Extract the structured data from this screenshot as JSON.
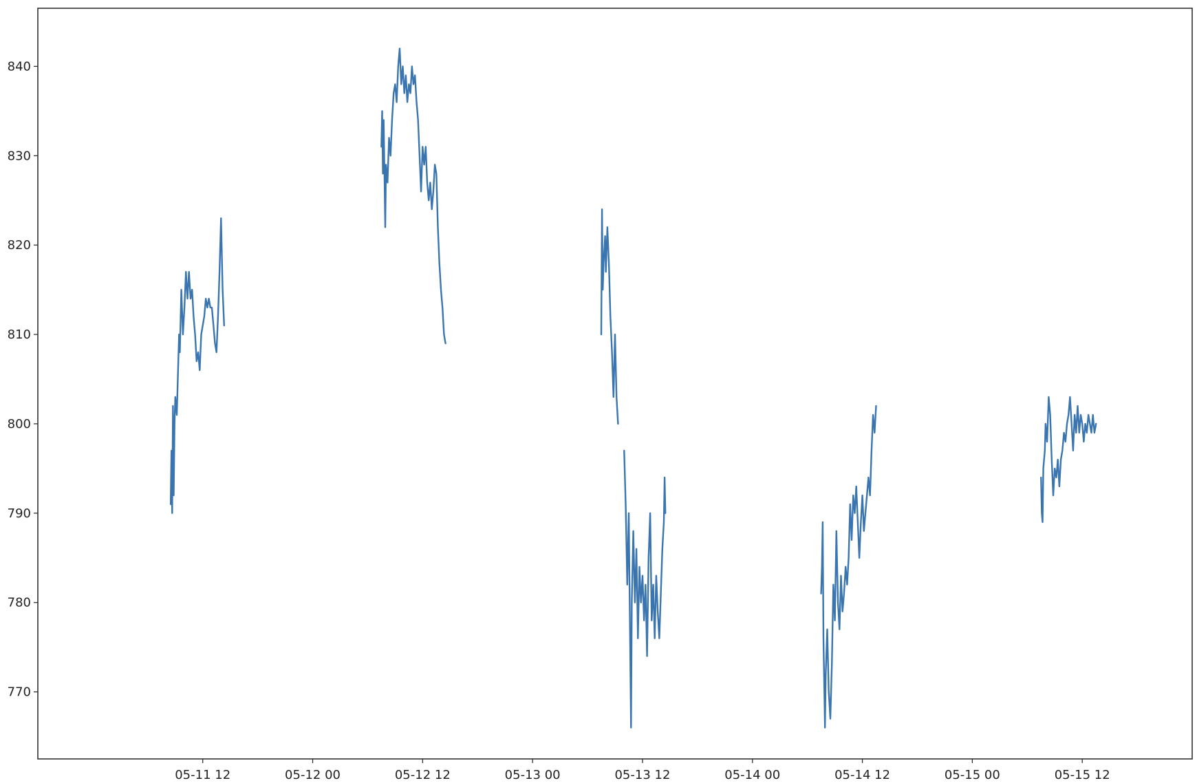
{
  "chart_data": {
    "type": "line",
    "title": "",
    "xlabel": "",
    "ylabel": "",
    "xlim": [
      "2022-05-10 18:00",
      "2022-05-16 00:00"
    ],
    "ylim": [
      762.5,
      846.5
    ],
    "grid": false,
    "legend": null,
    "xticks": [
      {
        "value": "2022-05-11 12:00",
        "label": "05-11 12"
      },
      {
        "value": "2022-05-12 00:00",
        "label": "05-12 00"
      },
      {
        "value": "2022-05-12 12:00",
        "label": "05-12 12"
      },
      {
        "value": "2022-05-13 00:00",
        "label": "05-13 00"
      },
      {
        "value": "2022-05-13 12:00",
        "label": "05-13 12"
      },
      {
        "value": "2022-05-14 00:00",
        "label": "05-14 00"
      },
      {
        "value": "2022-05-14 12:00",
        "label": "05-14 12"
      },
      {
        "value": "2022-05-15 00:00",
        "label": "05-15 00"
      },
      {
        "value": "2022-05-15 12:00",
        "label": "05-15 12"
      }
    ],
    "yticks": [
      {
        "value": 770,
        "label": "770"
      },
      {
        "value": 780,
        "label": "780"
      },
      {
        "value": 790,
        "label": "790"
      },
      {
        "value": 800,
        "label": "800"
      },
      {
        "value": 810,
        "label": "810"
      },
      {
        "value": 820,
        "label": "820"
      },
      {
        "value": 830,
        "label": "830"
      },
      {
        "value": 840,
        "label": "840"
      }
    ],
    "series": [
      {
        "color": "#3a75b0",
        "segments": [
          [
            [
              "2022-05-11 08:30",
              791
            ],
            [
              "2022-05-11 08:35",
              797
            ],
            [
              "2022-05-11 08:40",
              790
            ],
            [
              "2022-05-11 08:45",
              802
            ],
            [
              "2022-05-11 08:50",
              792
            ],
            [
              "2022-05-11 08:55",
              800
            ],
            [
              "2022-05-11 09:00",
              803
            ],
            [
              "2022-05-11 09:10",
              801
            ],
            [
              "2022-05-11 09:15",
              804
            ],
            [
              "2022-05-11 09:25",
              810
            ],
            [
              "2022-05-11 09:30",
              808
            ],
            [
              "2022-05-11 09:40",
              815
            ],
            [
              "2022-05-11 09:50",
              810
            ],
            [
              "2022-05-11 10:00",
              813
            ],
            [
              "2022-05-11 10:10",
              817
            ],
            [
              "2022-05-11 10:20",
              814
            ],
            [
              "2022-05-11 10:30",
              817
            ],
            [
              "2022-05-11 10:40",
              814
            ],
            [
              "2022-05-11 10:50",
              815
            ],
            [
              "2022-05-11 11:00",
              812
            ],
            [
              "2022-05-11 11:10",
              810
            ],
            [
              "2022-05-11 11:20",
              807
            ],
            [
              "2022-05-11 11:30",
              808
            ],
            [
              "2022-05-11 11:40",
              806
            ],
            [
              "2022-05-11 11:50",
              810
            ],
            [
              "2022-05-11 12:00",
              811
            ],
            [
              "2022-05-11 12:10",
              812
            ],
            [
              "2022-05-11 12:20",
              814
            ],
            [
              "2022-05-11 12:30",
              813
            ],
            [
              "2022-05-11 12:40",
              814
            ],
            [
              "2022-05-11 12:50",
              813
            ],
            [
              "2022-05-11 13:00",
              813
            ],
            [
              "2022-05-11 13:10",
              811
            ],
            [
              "2022-05-11 13:20",
              809
            ],
            [
              "2022-05-11 13:30",
              808
            ],
            [
              "2022-05-11 13:40",
              812
            ],
            [
              "2022-05-11 13:50",
              817
            ],
            [
              "2022-05-11 14:00",
              823
            ],
            [
              "2022-05-11 14:10",
              815
            ],
            [
              "2022-05-11 14:20",
              811
            ]
          ],
          [
            [
              "2022-05-12 07:30",
              831
            ],
            [
              "2022-05-12 07:35",
              835
            ],
            [
              "2022-05-12 07:40",
              828
            ],
            [
              "2022-05-12 07:45",
              834
            ],
            [
              "2022-05-12 07:55",
              822
            ],
            [
              "2022-05-12 08:00",
              829
            ],
            [
              "2022-05-12 08:10",
              827
            ],
            [
              "2022-05-12 08:20",
              832
            ],
            [
              "2022-05-12 08:30",
              830
            ],
            [
              "2022-05-12 08:40",
              834
            ],
            [
              "2022-05-12 08:50",
              837
            ],
            [
              "2022-05-12 09:00",
              838
            ],
            [
              "2022-05-12 09:10",
              836
            ],
            [
              "2022-05-12 09:20",
              840
            ],
            [
              "2022-05-12 09:30",
              842
            ],
            [
              "2022-05-12 09:40",
              838
            ],
            [
              "2022-05-12 09:50",
              840
            ],
            [
              "2022-05-12 10:00",
              837
            ],
            [
              "2022-05-12 10:10",
              839
            ],
            [
              "2022-05-12 10:20",
              836
            ],
            [
              "2022-05-12 10:30",
              838
            ],
            [
              "2022-05-12 10:40",
              837
            ],
            [
              "2022-05-12 10:50",
              840
            ],
            [
              "2022-05-12 11:00",
              838
            ],
            [
              "2022-05-12 11:10",
              839
            ],
            [
              "2022-05-12 11:20",
              836
            ],
            [
              "2022-05-12 11:30",
              834
            ],
            [
              "2022-05-12 11:40",
              830
            ],
            [
              "2022-05-12 11:50",
              826
            ],
            [
              "2022-05-12 12:00",
              831
            ],
            [
              "2022-05-12 12:10",
              829
            ],
            [
              "2022-05-12 12:20",
              831
            ],
            [
              "2022-05-12 12:30",
              827
            ],
            [
              "2022-05-12 12:40",
              825
            ],
            [
              "2022-05-12 12:50",
              827
            ],
            [
              "2022-05-12 13:00",
              824
            ],
            [
              "2022-05-12 13:10",
              826
            ],
            [
              "2022-05-12 13:20",
              829
            ],
            [
              "2022-05-12 13:30",
              828
            ],
            [
              "2022-05-12 13:40",
              822
            ],
            [
              "2022-05-12 13:50",
              818
            ],
            [
              "2022-05-12 14:00",
              815
            ],
            [
              "2022-05-12 14:10",
              813
            ],
            [
              "2022-05-12 14:20",
              810
            ],
            [
              "2022-05-12 14:30",
              809
            ]
          ],
          [
            [
              "2022-05-13 07:30",
              810
            ],
            [
              "2022-05-13 07:35",
              824
            ],
            [
              "2022-05-13 07:40",
              815
            ],
            [
              "2022-05-13 07:45",
              818
            ],
            [
              "2022-05-13 07:55",
              821
            ],
            [
              "2022-05-13 08:00",
              817
            ],
            [
              "2022-05-13 08:10",
              822
            ],
            [
              "2022-05-13 08:20",
              818
            ],
            [
              "2022-05-13 08:30",
              812
            ],
            [
              "2022-05-13 08:40",
              808
            ],
            [
              "2022-05-13 08:50",
              803
            ],
            [
              "2022-05-13 09:00",
              810
            ],
            [
              "2022-05-13 09:10",
              803
            ],
            [
              "2022-05-13 09:20",
              800
            ]
          ],
          [
            [
              "2022-05-13 10:00",
              797
            ],
            [
              "2022-05-13 10:10",
              791
            ],
            [
              "2022-05-13 10:20",
              782
            ],
            [
              "2022-05-13 10:30",
              790
            ],
            [
              "2022-05-13 10:40",
              774
            ],
            [
              "2022-05-13 10:45",
              766
            ],
            [
              "2022-05-13 10:50",
              780
            ],
            [
              "2022-05-13 11:00",
              788
            ],
            [
              "2022-05-13 11:10",
              780
            ],
            [
              "2022-05-13 11:20",
              786
            ],
            [
              "2022-05-13 11:30",
              776
            ],
            [
              "2022-05-13 11:40",
              784
            ],
            [
              "2022-05-13 11:50",
              780
            ],
            [
              "2022-05-13 12:00",
              783
            ],
            [
              "2022-05-13 12:10",
              778
            ],
            [
              "2022-05-13 12:20",
              782
            ],
            [
              "2022-05-13 12:30",
              774
            ],
            [
              "2022-05-13 12:40",
              785
            ],
            [
              "2022-05-13 12:50",
              790
            ],
            [
              "2022-05-13 13:00",
              778
            ],
            [
              "2022-05-13 13:10",
              782
            ],
            [
              "2022-05-13 13:20",
              776
            ],
            [
              "2022-05-13 13:30",
              783
            ],
            [
              "2022-05-13 13:40",
              779
            ],
            [
              "2022-05-13 13:50",
              776
            ],
            [
              "2022-05-13 14:00",
              781
            ],
            [
              "2022-05-13 14:10",
              786
            ],
            [
              "2022-05-13 14:20",
              789
            ],
            [
              "2022-05-13 14:25",
              794
            ],
            [
              "2022-05-13 14:30",
              790
            ]
          ],
          [
            [
              "2022-05-14 07:30",
              781
            ],
            [
              "2022-05-14 07:35",
              784
            ],
            [
              "2022-05-14 07:40",
              789
            ],
            [
              "2022-05-14 07:45",
              776
            ],
            [
              "2022-05-14 07:55",
              766
            ],
            [
              "2022-05-14 08:00",
              772
            ],
            [
              "2022-05-14 08:10",
              777
            ],
            [
              "2022-05-14 08:20",
              770
            ],
            [
              "2022-05-14 08:30",
              767
            ],
            [
              "2022-05-14 08:40",
              773
            ],
            [
              "2022-05-14 08:50",
              782
            ],
            [
              "2022-05-14 09:00",
              778
            ],
            [
              "2022-05-14 09:10",
              788
            ],
            [
              "2022-05-14 09:20",
              780
            ],
            [
              "2022-05-14 09:30",
              777
            ],
            [
              "2022-05-14 09:40",
              783
            ],
            [
              "2022-05-14 09:50",
              779
            ],
            [
              "2022-05-14 10:00",
              781
            ],
            [
              "2022-05-14 10:10",
              784
            ],
            [
              "2022-05-14 10:20",
              782
            ],
            [
              "2022-05-14 10:30",
              785
            ],
            [
              "2022-05-14 10:40",
              791
            ],
            [
              "2022-05-14 10:50",
              787
            ],
            [
              "2022-05-14 11:00",
              792
            ],
            [
              "2022-05-14 11:10",
              790
            ],
            [
              "2022-05-14 11:20",
              793
            ],
            [
              "2022-05-14 11:30",
              789
            ],
            [
              "2022-05-14 11:40",
              785
            ],
            [
              "2022-05-14 11:50",
              789
            ],
            [
              "2022-05-14 12:00",
              792
            ],
            [
              "2022-05-14 12:10",
              788
            ],
            [
              "2022-05-14 12:20",
              790
            ],
            [
              "2022-05-14 12:30",
              792
            ],
            [
              "2022-05-14 12:40",
              794
            ],
            [
              "2022-05-14 12:50",
              792
            ],
            [
              "2022-05-14 13:00",
              797
            ],
            [
              "2022-05-14 13:10",
              801
            ],
            [
              "2022-05-14 13:20",
              799
            ],
            [
              "2022-05-14 13:30",
              802
            ]
          ],
          [
            [
              "2022-05-15 07:30",
              794
            ],
            [
              "2022-05-15 07:35",
              790
            ],
            [
              "2022-05-15 07:40",
              789
            ],
            [
              "2022-05-15 07:45",
              795
            ],
            [
              "2022-05-15 07:55",
              797
            ],
            [
              "2022-05-15 08:00",
              800
            ],
            [
              "2022-05-15 08:10",
              798
            ],
            [
              "2022-05-15 08:20",
              803
            ],
            [
              "2022-05-15 08:30",
              801
            ],
            [
              "2022-05-15 08:40",
              796
            ],
            [
              "2022-05-15 08:50",
              792
            ],
            [
              "2022-05-15 09:00",
              795
            ],
            [
              "2022-05-15 09:10",
              794
            ],
            [
              "2022-05-15 09:20",
              796
            ],
            [
              "2022-05-15 09:30",
              793
            ],
            [
              "2022-05-15 09:40",
              796
            ],
            [
              "2022-05-15 09:50",
              797
            ],
            [
              "2022-05-15 10:00",
              799
            ],
            [
              "2022-05-15 10:10",
              798
            ],
            [
              "2022-05-15 10:20",
              800
            ],
            [
              "2022-05-15 10:30",
              801
            ],
            [
              "2022-05-15 10:40",
              803
            ],
            [
              "2022-05-15 10:50",
              800
            ],
            [
              "2022-05-15 11:00",
              797
            ],
            [
              "2022-05-15 11:10",
              801
            ],
            [
              "2022-05-15 11:20",
              799
            ],
            [
              "2022-05-15 11:30",
              802
            ],
            [
              "2022-05-15 11:40",
              799
            ],
            [
              "2022-05-15 11:50",
              801
            ],
            [
              "2022-05-15 12:00",
              800
            ],
            [
              "2022-05-15 12:10",
              798
            ],
            [
              "2022-05-15 12:20",
              800
            ],
            [
              "2022-05-15 12:30",
              799
            ],
            [
              "2022-05-15 12:40",
              801
            ],
            [
              "2022-05-15 12:50",
              800
            ],
            [
              "2022-05-15 13:00",
              799
            ],
            [
              "2022-05-15 13:10",
              801
            ],
            [
              "2022-05-15 13:20",
              799
            ],
            [
              "2022-05-15 13:30",
              800
            ]
          ]
        ]
      }
    ]
  }
}
